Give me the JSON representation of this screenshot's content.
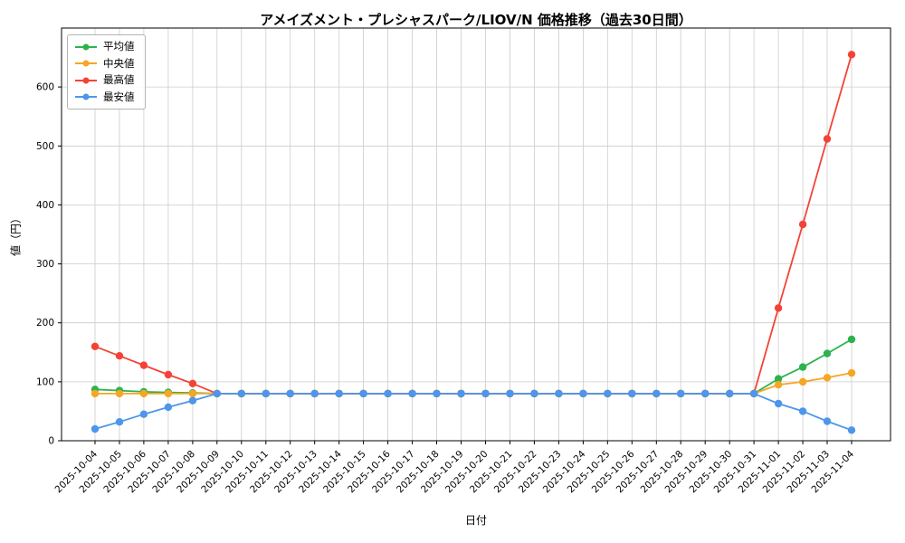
{
  "chart_data": {
    "type": "line",
    "title": "アメイズメント・プレシャスパーク/LIOV/N 価格推移（過去30日間）",
    "xlabel": "日付",
    "ylabel": "値（円）",
    "ylim": [
      0,
      700
    ],
    "yticks": [
      0,
      100,
      200,
      300,
      400,
      500,
      600
    ],
    "grid": true,
    "legend_position": "upper left",
    "x": [
      "2025-10-04",
      "2025-10-05",
      "2025-10-06",
      "2025-10-07",
      "2025-10-08",
      "2025-10-09",
      "2025-10-10",
      "2025-10-11",
      "2025-10-12",
      "2025-10-13",
      "2025-10-14",
      "2025-10-15",
      "2025-10-16",
      "2025-10-17",
      "2025-10-18",
      "2025-10-19",
      "2025-10-20",
      "2025-10-21",
      "2025-10-22",
      "2025-10-23",
      "2025-10-24",
      "2025-10-25",
      "2025-10-26",
      "2025-10-27",
      "2025-10-28",
      "2025-10-29",
      "2025-10-30",
      "2025-10-31",
      "2025-11-01",
      "2025-11-02",
      "2025-11-03",
      "2025-11-04"
    ],
    "series": [
      {
        "name": "平均値",
        "color": "#2db34e",
        "values": [
          87,
          85,
          83,
          82,
          81,
          80,
          80,
          80,
          80,
          80,
          80,
          80,
          80,
          80,
          80,
          80,
          80,
          80,
          80,
          80,
          80,
          80,
          80,
          80,
          80,
          80,
          80,
          80,
          105,
          125,
          148,
          172
        ]
      },
      {
        "name": "中央値",
        "color": "#f5a623",
        "values": [
          80,
          80,
          80,
          80,
          80,
          80,
          80,
          80,
          80,
          80,
          80,
          80,
          80,
          80,
          80,
          80,
          80,
          80,
          80,
          80,
          80,
          80,
          80,
          80,
          80,
          80,
          80,
          80,
          95,
          100,
          107,
          115
        ]
      },
      {
        "name": "最高値",
        "color": "#f44336",
        "values": [
          160,
          144,
          128,
          112,
          97,
          80,
          80,
          80,
          80,
          80,
          80,
          80,
          80,
          80,
          80,
          80,
          80,
          80,
          80,
          80,
          80,
          80,
          80,
          80,
          80,
          80,
          80,
          80,
          225,
          367,
          512,
          655
        ]
      },
      {
        "name": "最安値",
        "color": "#4d96ea",
        "values": [
          20,
          32,
          45,
          57,
          68,
          80,
          80,
          80,
          80,
          80,
          80,
          80,
          80,
          80,
          80,
          80,
          80,
          80,
          80,
          80,
          80,
          80,
          80,
          80,
          80,
          80,
          80,
          80,
          63,
          50,
          33,
          18
        ]
      }
    ]
  }
}
